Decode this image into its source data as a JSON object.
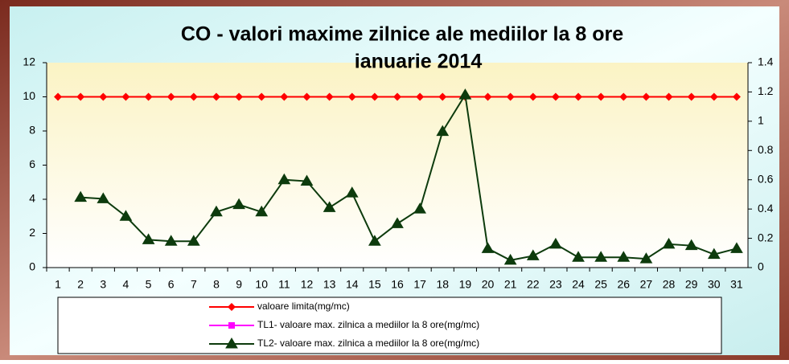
{
  "chart_data": {
    "type": "line",
    "title": "CO - valori maxime zilnice ale mediilor la 8 ore",
    "subtitle": "ianuarie 2014",
    "categories": [
      "1",
      "2",
      "3",
      "4",
      "5",
      "6",
      "7",
      "8",
      "9",
      "10",
      "11",
      "12",
      "13",
      "14",
      "15",
      "16",
      "17",
      "18",
      "19",
      "20",
      "21",
      "22",
      "23",
      "24",
      "25",
      "26",
      "27",
      "28",
      "29",
      "30",
      "31"
    ],
    "ylim": [
      0,
      12
    ],
    "yticks": [
      0,
      2,
      4,
      6,
      8,
      10,
      12
    ],
    "y2lim": [
      0,
      1.4
    ],
    "y2ticks": [
      0,
      0.2,
      0.4,
      0.6,
      0.8,
      1,
      1.2,
      1.4
    ],
    "grid": false,
    "legend": "bottom",
    "series": [
      {
        "name": "valoare limita(mg/mc)",
        "color": "#ff0000",
        "marker": "diamond",
        "values": [
          10,
          10,
          10,
          10,
          10,
          10,
          10,
          10,
          10,
          10,
          10,
          10,
          10,
          10,
          10,
          10,
          10,
          10,
          10,
          10,
          10,
          10,
          10,
          10,
          10,
          10,
          10,
          10,
          10,
          10,
          10
        ]
      },
      {
        "name": "TL1- valoare max. zilnica a mediilor la 8 ore(mg/mc)",
        "color": "#ff00ff",
        "marker": "square",
        "values": [
          null,
          null,
          null,
          null,
          null,
          null,
          null,
          null,
          null,
          null,
          null,
          null,
          null,
          null,
          null,
          null,
          null,
          null,
          null,
          null,
          null,
          null,
          null,
          null,
          null,
          null,
          null,
          null,
          null,
          null,
          null
        ]
      },
      {
        "name": "TL2- valoare max. zilnica a mediilor la 8 ore(mg/mc)",
        "color": "#0d3b0d",
        "marker": "triangle",
        "axis": "y2",
        "values": [
          null,
          0.48,
          0.47,
          0.35,
          0.19,
          0.18,
          0.18,
          0.38,
          0.43,
          0.38,
          0.6,
          0.59,
          0.41,
          0.51,
          0.18,
          0.3,
          0.4,
          0.93,
          1.18,
          0.13,
          0.05,
          0.08,
          0.16,
          0.07,
          0.07,
          0.07,
          0.06,
          0.16,
          0.15,
          0.09,
          0.13
        ]
      }
    ]
  }
}
